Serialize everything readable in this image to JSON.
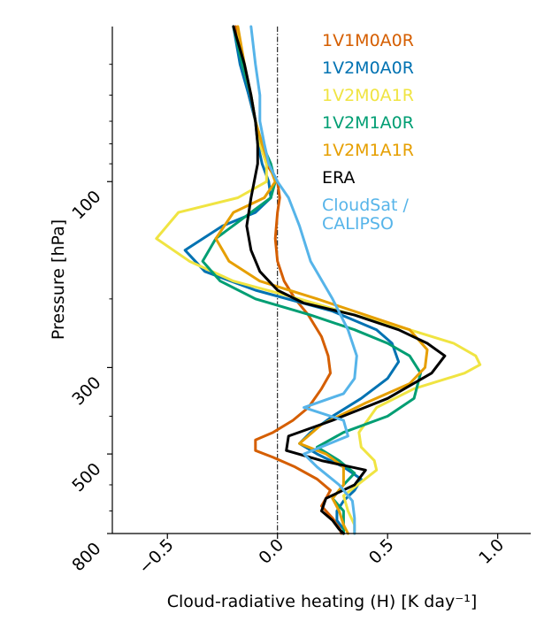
{
  "chart_data": {
    "type": "line",
    "xlabel": "Cloud-radiative heating (H) [K day⁻¹]",
    "ylabel": "Pressure [hPa]",
    "xlim": [
      -0.75,
      1.15
    ],
    "ylim": [
      800,
      40
    ],
    "y_scale": "log",
    "x_ticks": [
      -0.5,
      0.0,
      0.5,
      1.0
    ],
    "x_tick_labels": [
      "−0.5",
      "0.0",
      "0.5",
      "1.0"
    ],
    "y_ticks": [
      100,
      300,
      500,
      800
    ],
    "y_tick_labels": [
      "100",
      "300",
      "500",
      "800"
    ],
    "y_minor_ticks": [
      50,
      60,
      70,
      80,
      90,
      200,
      400,
      600,
      700
    ],
    "zero_line": {
      "x": 0,
      "style": "dash-dot"
    },
    "legend_position": "top-right",
    "series": [
      {
        "name": "1V1M0A0R",
        "color": "#d55e00",
        "x": [
          -0.19,
          -0.16,
          -0.13,
          -0.1,
          -0.08,
          -0.05,
          0.0,
          0.01,
          0.0,
          -0.01,
          0.0,
          0.03,
          0.08,
          0.14,
          0.2,
          0.23,
          0.24,
          0.2,
          0.14,
          0.07,
          -0.02,
          -0.1,
          -0.1,
          -0.02,
          0.08,
          0.18,
          0.24,
          0.22,
          0.2,
          0.22,
          0.25,
          0.28,
          0.29
        ],
        "y": [
          40,
          50,
          60,
          70,
          80,
          90,
          100,
          110,
          120,
          140,
          160,
          180,
          200,
          220,
          250,
          280,
          310,
          340,
          380,
          410,
          440,
          460,
          490,
          510,
          540,
          580,
          620,
          650,
          680,
          700,
          730,
          770,
          800
        ]
      },
      {
        "name": "1V2M0A0R",
        "color": "#0072b2",
        "x": [
          -0.2,
          -0.17,
          -0.13,
          -0.1,
          -0.09,
          -0.07,
          -0.04,
          -0.03,
          -0.1,
          -0.25,
          -0.42,
          -0.33,
          -0.1,
          0.25,
          0.45,
          0.52,
          0.55,
          0.5,
          0.38,
          0.25,
          0.15,
          0.1,
          0.18,
          0.3,
          0.38,
          0.35,
          0.3,
          0.27,
          0.27,
          0.3,
          0.3
        ],
        "y": [
          40,
          50,
          60,
          70,
          80,
          90,
          100,
          110,
          120,
          130,
          150,
          170,
          190,
          215,
          240,
          260,
          290,
          320,
          360,
          400,
          440,
          470,
          500,
          540,
          580,
          620,
          660,
          700,
          740,
          780,
          800
        ]
      },
      {
        "name": "1V2M0A1R",
        "color": "#f0e442",
        "x": [
          -0.18,
          -0.16,
          -0.12,
          -0.1,
          -0.08,
          -0.05,
          -0.05,
          -0.18,
          -0.45,
          -0.55,
          -0.4,
          -0.2,
          0.1,
          0.35,
          0.6,
          0.8,
          0.9,
          0.92,
          0.85,
          0.62,
          0.45,
          0.37,
          0.38,
          0.44,
          0.45,
          0.38,
          0.3,
          0.32,
          0.35,
          0.35
        ],
        "y": [
          40,
          50,
          60,
          70,
          80,
          90,
          100,
          110,
          120,
          140,
          160,
          180,
          200,
          220,
          240,
          260,
          280,
          295,
          310,
          340,
          380,
          440,
          480,
          520,
          550,
          590,
          640,
          700,
          760,
          800
        ]
      },
      {
        "name": "1V2M1A0R",
        "color": "#009e73",
        "x": [
          -0.2,
          -0.16,
          -0.12,
          -0.1,
          -0.07,
          -0.03,
          -0.01,
          -0.03,
          -0.12,
          -0.28,
          -0.34,
          -0.26,
          -0.1,
          0.15,
          0.35,
          0.5,
          0.6,
          0.65,
          0.62,
          0.5,
          0.3,
          0.18,
          0.28,
          0.35,
          0.3,
          0.25,
          0.3,
          0.3,
          0.3
        ],
        "y": [
          40,
          50,
          60,
          70,
          80,
          90,
          100,
          110,
          120,
          140,
          160,
          180,
          200,
          220,
          240,
          260,
          280,
          310,
          360,
          400,
          440,
          480,
          520,
          560,
          600,
          650,
          700,
          760,
          800
        ]
      },
      {
        "name": "1V2M1A1R",
        "color": "#e69f00",
        "x": [
          -0.18,
          -0.15,
          -0.12,
          -0.1,
          -0.07,
          -0.04,
          -0.01,
          -0.06,
          -0.2,
          -0.28,
          -0.22,
          -0.08,
          0.18,
          0.4,
          0.6,
          0.68,
          0.67,
          0.6,
          0.4,
          0.2,
          0.1,
          0.22,
          0.3,
          0.3,
          0.25,
          0.28,
          0.3,
          0.32
        ],
        "y": [
          40,
          50,
          60,
          70,
          80,
          90,
          100,
          110,
          120,
          140,
          160,
          180,
          200,
          220,
          240,
          270,
          300,
          330,
          370,
          420,
          470,
          500,
          540,
          600,
          650,
          700,
          760,
          800
        ]
      },
      {
        "name": "ERA",
        "color": "#000000",
        "x": [
          -0.2,
          -0.15,
          -0.12,
          -0.1,
          -0.09,
          -0.09,
          -0.12,
          -0.14,
          -0.12,
          -0.08,
          0.0,
          0.12,
          0.35,
          0.55,
          0.68,
          0.76,
          0.7,
          0.5,
          0.25,
          0.05,
          0.04,
          0.2,
          0.4,
          0.35,
          0.22,
          0.2,
          0.25,
          0.28,
          0.3
        ],
        "y": [
          40,
          50,
          60,
          70,
          80,
          90,
          110,
          130,
          150,
          170,
          190,
          205,
          220,
          240,
          260,
          280,
          310,
          360,
          410,
          450,
          490,
          520,
          550,
          600,
          650,
          700,
          740,
          780,
          800
        ]
      },
      {
        "name": "CloudSat /\nCALIPSO",
        "color": "#56b4e9",
        "x": [
          -0.12,
          -0.1,
          -0.08,
          -0.08,
          -0.06,
          -0.04,
          0.0,
          0.05,
          0.1,
          0.15,
          0.25,
          0.32,
          0.36,
          0.35,
          0.3,
          0.12,
          0.3,
          0.32,
          0.12,
          0.18,
          0.28,
          0.34,
          0.35,
          0.35
        ],
        "y": [
          40,
          50,
          60,
          70,
          80,
          90,
          100,
          110,
          130,
          160,
          200,
          240,
          280,
          320,
          350,
          380,
          410,
          450,
          500,
          540,
          600,
          660,
          730,
          800
        ]
      }
    ]
  }
}
